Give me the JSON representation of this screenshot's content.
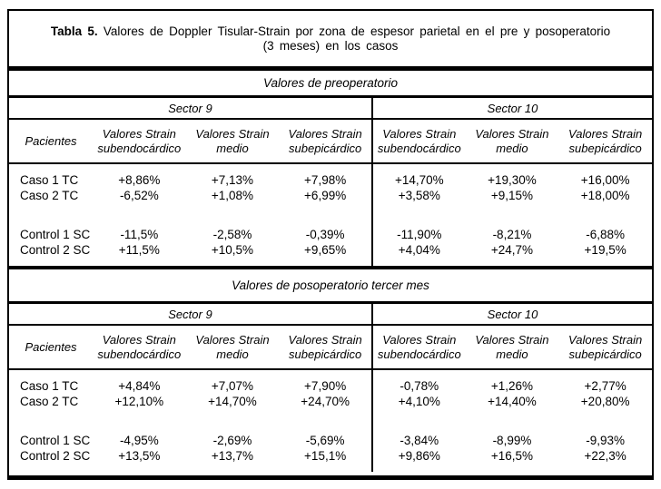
{
  "title": {
    "bold": "Tabla 5.",
    "line1": "Valores de Doppler Tisular-Strain por zona de espesor parietal en el pre y posoperatorio",
    "line2": "(3 meses) en los casos"
  },
  "sectors": {
    "s9": "Sector 9",
    "s10": "Sector 10"
  },
  "columns": {
    "pacientes": "Pacientes",
    "strain_line1": "Valores Strain",
    "sub_endo": "subendocárdico",
    "medio": "medio",
    "sub_epi": "subepicárdico"
  },
  "preop": {
    "section_title": "Valores de preoperatorio",
    "rows": [
      {
        "label": "Caso 1 TC",
        "values": [
          "+8,86%",
          "+7,13%",
          "+7,98%",
          "+14,70%",
          "+19,30%",
          "+16,00%"
        ]
      },
      {
        "label": "Caso 2 TC",
        "values": [
          "-6,52%",
          "+1,08%",
          "+6,99%",
          "+3,58%",
          "+9,15%",
          "+18,00%"
        ]
      },
      {
        "label": "Control 1 SC",
        "values": [
          "-11,5%",
          "-2,58%",
          "-0,39%",
          "-11,90%",
          "-8,21%",
          "-6,88%"
        ]
      },
      {
        "label": "Control 2 SC",
        "values": [
          "+11,5%",
          "+10,5%",
          "+9,65%",
          "+4,04%",
          "+24,7%",
          "+19,5%"
        ]
      }
    ]
  },
  "postop": {
    "section_title": "Valores de posoperatorio tercer mes",
    "rows": [
      {
        "label": "Caso 1 TC",
        "values": [
          "+4,84%",
          "+7,07%",
          "+7,90%",
          "-0,78%",
          "+1,26%",
          "+2,77%"
        ]
      },
      {
        "label": "Caso 2 TC",
        "values": [
          "+12,10%",
          "+14,70%",
          "+24,70%",
          "+4,10%",
          "+14,40%",
          "+20,80%"
        ]
      },
      {
        "label": "Control 1 SC",
        "values": [
          "-4,95%",
          "-2,69%",
          "-5,69%",
          "-3,84%",
          "-8,99%",
          "-9,93%"
        ]
      },
      {
        "label": "Control 2 SC",
        "values": [
          "+13,5%",
          "+13,7%",
          "+15,1%",
          "+9,86%",
          "+16,5%",
          "+22,3%"
        ]
      }
    ]
  }
}
